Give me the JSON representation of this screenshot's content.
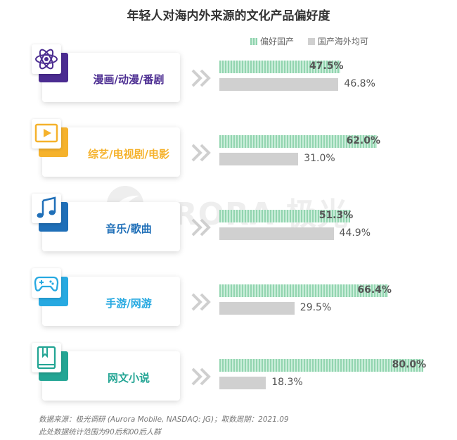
{
  "chart_data": {
    "type": "bar",
    "title": "年轻人对海内外来源的文化产品偏好度",
    "categories": [
      "漫画/动漫/番剧",
      "综艺/电视剧/电影",
      "音乐/歌曲",
      "手游/网游",
      "网文小说"
    ],
    "series": [
      {
        "name": "偏好国产",
        "values": [
          47.5,
          62.0,
          51.3,
          66.4,
          80.0
        ],
        "labels": [
          "47.5%",
          "62.0%",
          "51.3%",
          "66.4%",
          "80.0%"
        ]
      },
      {
        "name": "国产海外均可",
        "values": [
          46.8,
          31.0,
          44.9,
          29.5,
          18.3
        ],
        "labels": [
          "46.8%",
          "31.0%",
          "44.9%",
          "29.5%",
          "18.3%"
        ]
      }
    ],
    "xlim": [
      0,
      100
    ],
    "legend": "top-right"
  },
  "colors": {
    "series_cn": "#93d5b0",
    "series_foreign": "#d0d0d0",
    "category_colors": [
      "#4b2c91",
      "#f5b22c",
      "#1f6fb8",
      "#27a9e1",
      "#23a594"
    ]
  },
  "icons": [
    "atom-icon",
    "video-play-icon",
    "music-note-icon",
    "gamepad-icon",
    "book-icon"
  ],
  "watermark": {
    "text": "URORA 极光"
  },
  "footnote": {
    "line1": "数据来源：极光调研 (Aurora Mobile, NASDAQ: JG)；取数周期：2021.09",
    "line2": "此处数据统计范围为90后和00后人群"
  }
}
